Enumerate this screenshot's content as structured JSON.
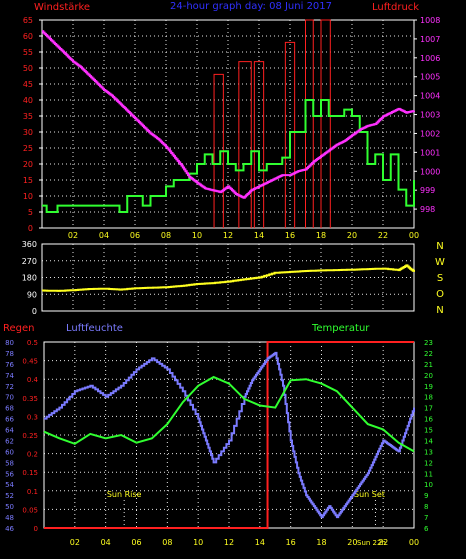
{
  "colors": {
    "wind_red": "#ff2020",
    "pressure_magenta": "#ff30ff",
    "wind_green": "#30ff30",
    "direction_yellow": "#ffff20",
    "rain_red": "#ff2020",
    "humidity_blue": "#7b7bff",
    "temperature_green": "#30ff30",
    "axis_white": "#ffffff",
    "hour_yellow": "#ffff20",
    "bg": "#000000",
    "grid": "#ffffff",
    "direction_letters": "#ffff20"
  },
  "chart_data": [
    {
      "type": "line",
      "title": "24-hour graph day: 08 Juni 2017",
      "left_label": "Windstärke",
      "right_label": "Luftdruck",
      "xlim": [
        0,
        24
      ],
      "x_ticks": [
        "02",
        "04",
        "06",
        "08",
        "10",
        "12",
        "14",
        "16",
        "18",
        "20",
        "22",
        "00"
      ],
      "ylim": [
        0,
        65
      ],
      "y_ticks": [
        0,
        5,
        10,
        15,
        20,
        25,
        30,
        35,
        40,
        45,
        50,
        55,
        60,
        65
      ],
      "y2lim": [
        997,
        1008
      ],
      "y2_ticks": [
        998,
        999,
        1000,
        1001,
        1002,
        1003,
        1004,
        1005,
        1006,
        1007,
        1008
      ],
      "gusts": [
        {
          "x0": 11.1,
          "x1": 11.7,
          "value": 48
        },
        {
          "x0": 12.7,
          "x1": 13.5,
          "value": 52
        },
        {
          "x0": 13.7,
          "x1": 14.3,
          "value": 52
        },
        {
          "x0": 15.7,
          "x1": 16.3,
          "value": 58
        },
        {
          "x0": 17.0,
          "x1": 17.5,
          "value": 66
        },
        {
          "x0": 18.0,
          "x1": 18.6,
          "value": 66
        }
      ],
      "series": [
        {
          "name": "Windstärke",
          "x": [
            0,
            0.3,
            1,
            2,
            3,
            4,
            5,
            5.5,
            6,
            6.5,
            7,
            8,
            8.5,
            9,
            9.5,
            10,
            10.5,
            11,
            11.5,
            12,
            12.5,
            13,
            13.5,
            14,
            14.5,
            15,
            15.5,
            16,
            16.5,
            17,
            17.5,
            18,
            18.5,
            19,
            19.5,
            20,
            20.5,
            21,
            21.5,
            22,
            22.5,
            23,
            23.5,
            24
          ],
          "y": [
            7,
            5,
            7,
            7,
            7,
            7,
            5,
            10,
            10,
            7,
            10,
            13,
            15,
            15,
            17,
            20,
            23,
            20,
            24,
            20,
            18,
            20,
            24,
            18,
            20,
            20,
            22,
            30,
            30,
            40,
            35,
            40,
            35,
            35,
            37,
            35,
            30,
            20,
            23,
            15,
            23,
            12,
            7,
            15
          ]
        },
        {
          "name": "Luftdruck",
          "x": [
            0,
            0.5,
            1,
            1.5,
            2,
            2.5,
            3,
            3.5,
            4,
            4.5,
            5,
            5.5,
            6,
            6.5,
            7,
            7.5,
            8,
            8.5,
            9,
            9.5,
            10,
            10.5,
            11,
            11.5,
            12,
            12.5,
            13,
            13.5,
            14,
            14.5,
            15,
            15.5,
            16,
            16.5,
            17,
            17.5,
            18,
            18.5,
            19,
            19.5,
            20,
            20.5,
            21,
            21.5,
            22,
            22.5,
            23,
            23.5,
            24
          ],
          "y": [
            1007.4,
            1007.0,
            1006.6,
            1006.2,
            1005.8,
            1005.5,
            1005.1,
            1004.7,
            1004.3,
            1004.0,
            1003.6,
            1003.2,
            1002.8,
            1002.4,
            1002.0,
            1001.7,
            1001.3,
            1000.8,
            1000.3,
            999.7,
            999.4,
            999.1,
            999.0,
            998.9,
            999.2,
            998.8,
            998.6,
            999.0,
            999.2,
            999.4,
            999.6,
            999.8,
            999.8,
            1000.0,
            1000.1,
            1000.5,
            1000.8,
            1001.1,
            1001.4,
            1001.6,
            1001.9,
            1002.2,
            1002.4,
            1002.5,
            1002.9,
            1003.1,
            1003.3,
            1003.1,
            1003.2
          ]
        }
      ]
    },
    {
      "type": "line",
      "title": "",
      "xlim": [
        0,
        24
      ],
      "ylim": [
        0,
        360
      ],
      "y_ticks": [
        0,
        90,
        180,
        270,
        360
      ],
      "direction_letters": [
        "N",
        "W",
        "S",
        "O",
        "N"
      ],
      "series": [
        {
          "name": "",
          "x": [
            0,
            1,
            2,
            3,
            4,
            5,
            6,
            7,
            8,
            9,
            10,
            11,
            12,
            13,
            14,
            15,
            16,
            17,
            18,
            19,
            20,
            21,
            22,
            23,
            23.5,
            24
          ],
          "y": [
            110,
            108,
            112,
            118,
            120,
            115,
            122,
            125,
            128,
            135,
            145,
            150,
            158,
            170,
            180,
            205,
            210,
            215,
            218,
            220,
            222,
            225,
            228,
            220,
            245,
            210
          ]
        }
      ]
    },
    {
      "type": "line",
      "left_label": "Regen",
      "center_label": "Luftfeuchte",
      "right_label": "Temperatur",
      "xlim": [
        0,
        24
      ],
      "x_ticks": [
        "02",
        "04",
        "06",
        "08",
        "10",
        "12",
        "14",
        "16",
        "18",
        "20",
        "22",
        "00"
      ],
      "rain_ylim": [
        0,
        0.5
      ],
      "rain_ticks": [
        0,
        0.05,
        0.1,
        0.15,
        0.2,
        0.25,
        0.3,
        0.35,
        0.4,
        0.45,
        0.5
      ],
      "humidity_ylim": [
        46,
        80
      ],
      "humidity_ticks": [
        46,
        48,
        50,
        52,
        54,
        56,
        58,
        60,
        62,
        64,
        66,
        68,
        70,
        72,
        74,
        76,
        78,
        80
      ],
      "temp_ylim": [
        6,
        23
      ],
      "temp_ticks": [
        6,
        7,
        8,
        9,
        10,
        11,
        12,
        13,
        14,
        15,
        16,
        17,
        18,
        19,
        20,
        21,
        22,
        23
      ],
      "sun_rise": {
        "x": 5.2,
        "label": "Sun Rise"
      },
      "sun_set": {
        "x": 21.5,
        "label": "Sun Set"
      },
      "sun_set_axis_label": "Sun 22h",
      "series": [
        {
          "name": "Regen",
          "x": [
            0,
            14.5,
            14.5,
            24
          ],
          "y": [
            0,
            0,
            0.5,
            0.5
          ]
        },
        {
          "name": "Luftfeuchte",
          "x": [
            0,
            1,
            2,
            3,
            4,
            5,
            6,
            7,
            8,
            9,
            10,
            10.5,
            11,
            12,
            13,
            13.5,
            14,
            14.5,
            15,
            15.5,
            16,
            16.5,
            17,
            17.5,
            18,
            18.5,
            19,
            19.5,
            20,
            20.5,
            21,
            21.5,
            22,
            22.5,
            23,
            23.5,
            24
          ],
          "y": [
            66,
            68,
            71,
            72,
            70,
            72,
            75,
            77,
            75,
            71,
            66,
            62,
            58,
            62,
            70,
            73,
            75,
            77,
            78,
            72,
            62,
            56,
            52,
            50,
            48,
            50,
            48,
            50,
            52,
            54,
            56,
            59,
            62,
            61,
            60,
            64,
            68
          ],
          "note": "humidity units %"
        },
        {
          "name": "Temperatur",
          "x": [
            0,
            1,
            2,
            3,
            4,
            5,
            6,
            7,
            8,
            9,
            10,
            11,
            12,
            13,
            14,
            15,
            16,
            17,
            18,
            19,
            20,
            21,
            22,
            23,
            24
          ],
          "y": [
            14.8,
            14.2,
            13.7,
            14.6,
            14.2,
            14.5,
            13.8,
            14.2,
            15.5,
            17.5,
            19.0,
            19.8,
            19.2,
            17.8,
            17.2,
            17.0,
            19.5,
            19.6,
            19.2,
            18.5,
            17.0,
            15.5,
            15.0,
            13.8,
            13.0
          ]
        }
      ]
    }
  ],
  "labels": {
    "title": "24-hour graph day: 08 Juni 2017",
    "windstaerke": "Windstärke",
    "luftdruck": "Luftdruck",
    "regen": "Regen",
    "luftfeuchte": "Luftfeuchte",
    "temperatur": "Temperatur",
    "sun_rise": "Sun Rise",
    "sun_set": "Sun Set",
    "sun_22": "Sun 22h"
  }
}
